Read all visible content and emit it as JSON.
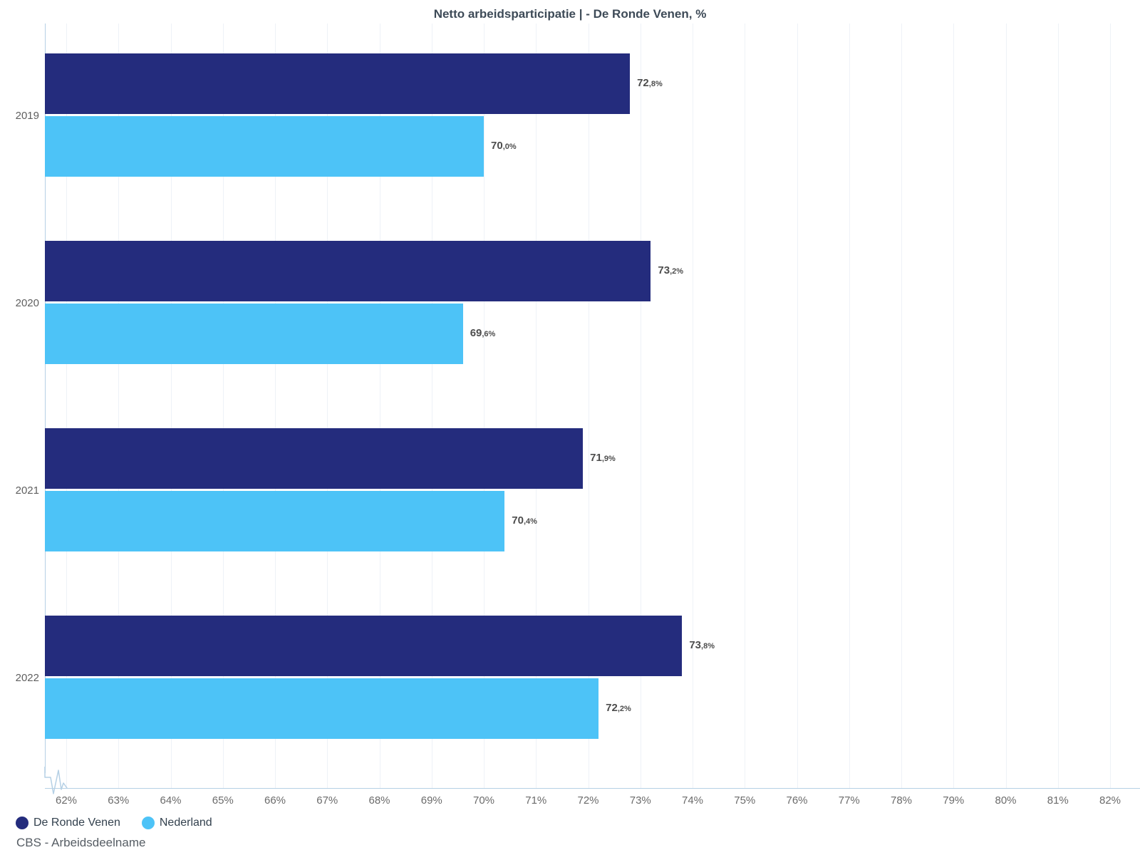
{
  "title": "Netto arbeidsparticipatie | - De Ronde Venen, %",
  "source_note": "CBS - Arbeidsdeelname",
  "colors": {
    "primary": "#242c7d",
    "secondary": "#4dc3f7",
    "axis": "#b5d0e5",
    "grid": "#eef2f7"
  },
  "legend": {
    "items": [
      {
        "label": "De Ronde Venen",
        "color": "#242c7d"
      },
      {
        "label": "Nederland",
        "color": "#4dc3f7"
      }
    ]
  },
  "chart_data": {
    "type": "bar",
    "orientation": "horizontal",
    "title": "Netto arbeidsparticipatie | - De Ronde Venen, %",
    "categories": [
      "2019",
      "2020",
      "2021",
      "2022"
    ],
    "series": [
      {
        "name": "De Ronde Venen",
        "color": "#242c7d",
        "values": [
          72.8,
          73.2,
          71.9,
          73.8
        ]
      },
      {
        "name": "Nederland",
        "color": "#4dc3f7",
        "values": [
          70.0,
          69.6,
          70.4,
          72.2
        ]
      }
    ],
    "value_labels": [
      [
        "72,8%",
        "73,2%",
        "71,9%",
        "73,8%"
      ],
      [
        "70,0%",
        "69,6%",
        "70,4%",
        "72,2%"
      ]
    ],
    "xlim": [
      62,
      82
    ],
    "x_ticks": [
      "62%",
      "63%",
      "64%",
      "65%",
      "66%",
      "67%",
      "68%",
      "69%",
      "70%",
      "71%",
      "72%",
      "73%",
      "74%",
      "75%",
      "76%",
      "77%",
      "78%",
      "79%",
      "80%",
      "81%",
      "82%"
    ],
    "grid": true,
    "axis_break": true,
    "legend_position": "bottom-left",
    "ylabel": "",
    "xlabel": ""
  }
}
